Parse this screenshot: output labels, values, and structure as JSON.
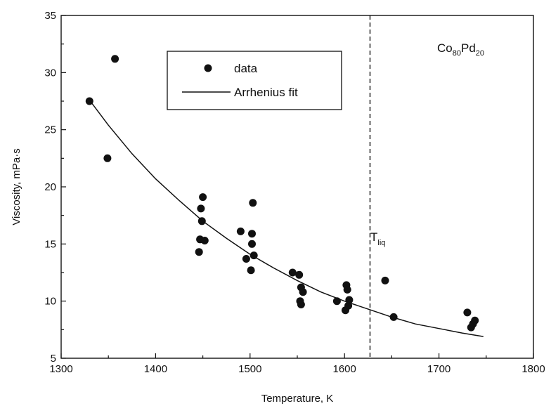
{
  "chart_data": {
    "type": "scatter",
    "xlabel": "Temperature, K",
    "ylabel": "Viscosity, mPa·s",
    "xlim": [
      1300,
      1800
    ],
    "ylim": [
      5,
      35
    ],
    "xticks": [
      "1300",
      "1400",
      "1500",
      "1600",
      "1700",
      "1800"
    ],
    "yticks": [
      "5",
      "10",
      "15",
      "20",
      "25",
      "30",
      "35"
    ],
    "grid": false,
    "legend_position": "top-center",
    "legend": {
      "data_label": "data",
      "fit_label": "Arrhenius fit"
    },
    "composition": {
      "el1": "Co",
      "sub1": "80",
      "el2": "Pd",
      "sub2": "20"
    },
    "liquidus": {
      "x": 1627,
      "label": "T",
      "sub": "liq"
    },
    "series": [
      {
        "name": "data",
        "kind": "points",
        "points": [
          [
            1330,
            27.5
          ],
          [
            1349,
            22.5
          ],
          [
            1357,
            31.2
          ],
          [
            1446,
            14.3
          ],
          [
            1447,
            15.4
          ],
          [
            1448,
            18.1
          ],
          [
            1449,
            17.0
          ],
          [
            1450,
            19.1
          ],
          [
            1452,
            15.3
          ],
          [
            1490,
            16.1
          ],
          [
            1496,
            13.7
          ],
          [
            1501,
            12.7
          ],
          [
            1502,
            15.9
          ],
          [
            1502,
            15.0
          ],
          [
            1503,
            18.6
          ],
          [
            1504,
            14.0
          ],
          [
            1545,
            12.5
          ],
          [
            1552,
            12.3
          ],
          [
            1553,
            10.0
          ],
          [
            1554,
            9.7
          ],
          [
            1554,
            11.2
          ],
          [
            1556,
            10.8
          ],
          [
            1592,
            10.0
          ],
          [
            1601,
            9.2
          ],
          [
            1602,
            11.4
          ],
          [
            1603,
            11.0
          ],
          [
            1604,
            9.6
          ],
          [
            1605,
            10.1
          ],
          [
            1643,
            11.8
          ],
          [
            1652,
            8.6
          ],
          [
            1730,
            9.0
          ],
          [
            1734,
            7.7
          ],
          [
            1736,
            8.0
          ],
          [
            1738,
            8.3
          ]
        ]
      },
      {
        "name": "Arrhenius fit",
        "kind": "line",
        "points": [
          [
            1330,
            27.6
          ],
          [
            1350,
            25.4
          ],
          [
            1375,
            22.9
          ],
          [
            1400,
            20.7
          ],
          [
            1425,
            18.8
          ],
          [
            1450,
            17.0
          ],
          [
            1475,
            15.5
          ],
          [
            1500,
            14.1
          ],
          [
            1525,
            12.9
          ],
          [
            1550,
            11.8
          ],
          [
            1575,
            10.8
          ],
          [
            1600,
            10.0
          ],
          [
            1625,
            9.3
          ],
          [
            1650,
            8.6
          ],
          [
            1675,
            8.0
          ],
          [
            1700,
            7.6
          ],
          [
            1725,
            7.2
          ],
          [
            1747,
            6.9
          ]
        ]
      }
    ]
  }
}
